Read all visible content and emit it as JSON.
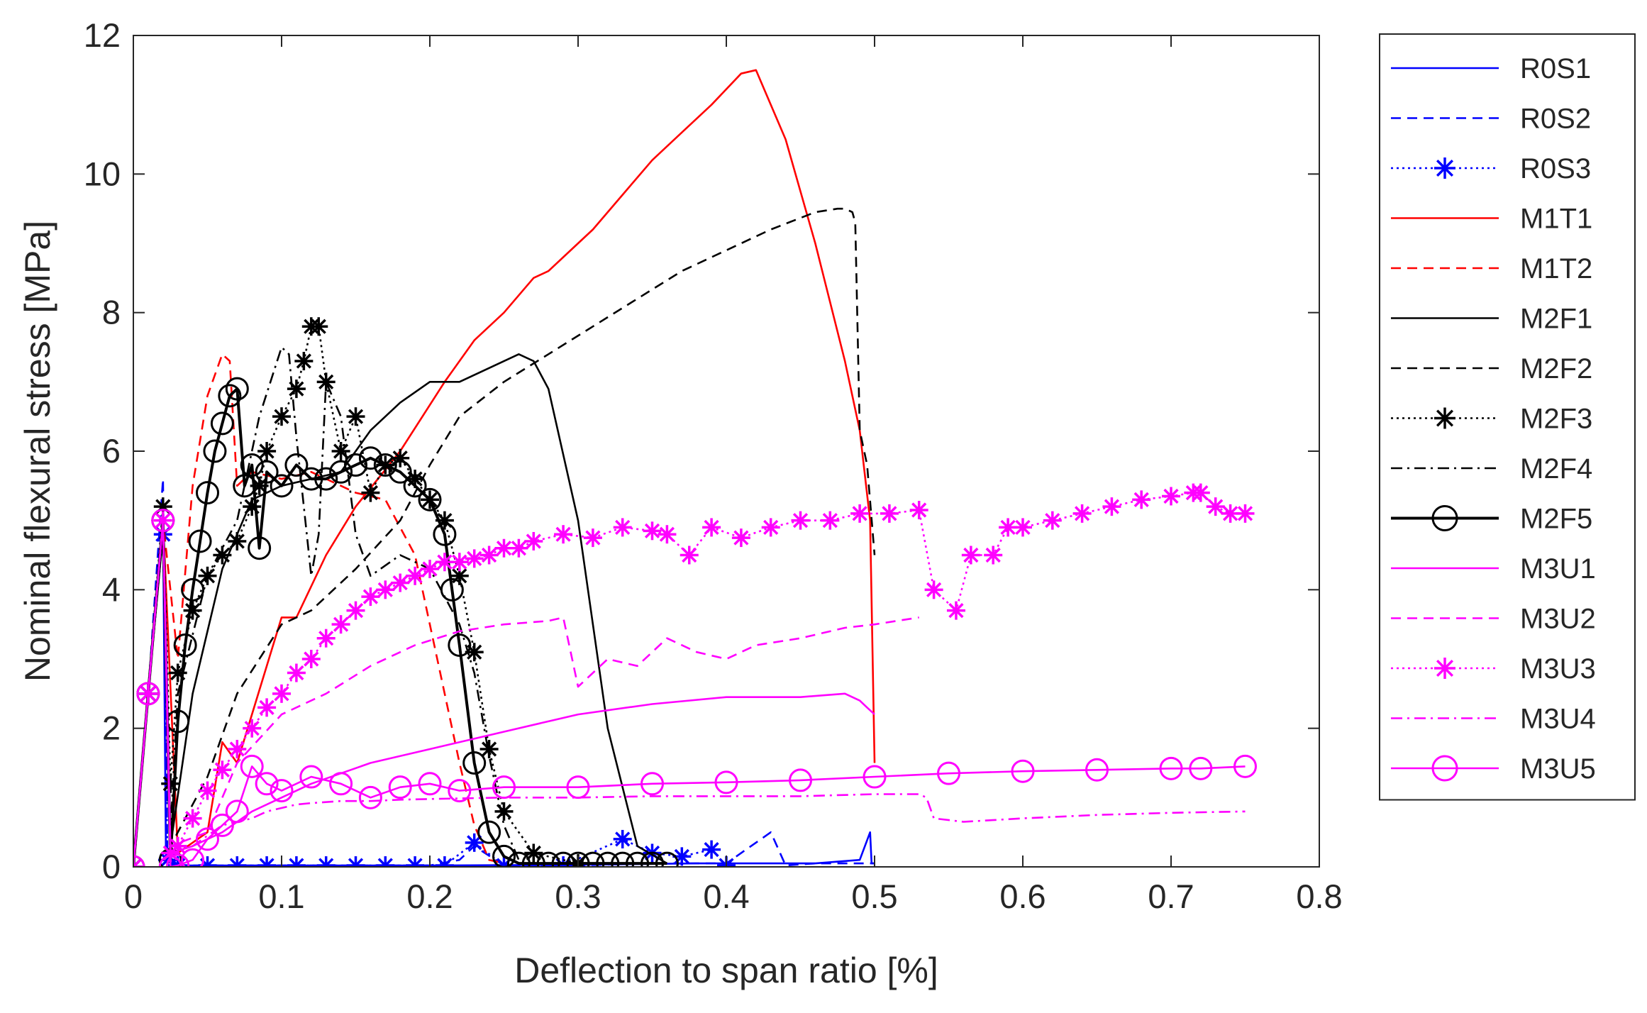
{
  "chart_data": {
    "type": "line",
    "xlabel": "Deflection to span ratio [%]",
    "ylabel": "Nominal flexural stress [MPa]",
    "xlim": [
      0,
      0.8
    ],
    "ylim": [
      0,
      12
    ],
    "xticks": [
      0,
      0.1,
      0.2,
      0.3,
      0.4,
      0.5,
      0.6,
      0.7,
      0.8
    ],
    "xtick_labels": [
      "0",
      "0.1",
      "0.2",
      "0.3",
      "0.4",
      "0.5",
      "0.6",
      "0.7",
      "0.8"
    ],
    "yticks": [
      0,
      2,
      4,
      6,
      8,
      10,
      12
    ],
    "ytick_labels": [
      "0",
      "2",
      "4",
      "6",
      "8",
      "10",
      "12"
    ],
    "grid": false,
    "legend_position": "outside-right",
    "series": [
      {
        "name": "R0S1",
        "color": "#0000ff",
        "dash": "solid",
        "marker": "none",
        "x": [
          0,
          0.01,
          0.02,
          0.022,
          0.03,
          0.1,
          0.2,
          0.3,
          0.38,
          0.42,
          0.46,
          0.49,
          0.497,
          0.498,
          0.5
        ],
        "y": [
          0,
          2.5,
          5.0,
          0.1,
          0.02,
          0.02,
          0.02,
          0.03,
          0.05,
          0.05,
          0.05,
          0.1,
          0.5,
          0.05,
          0.05
        ]
      },
      {
        "name": "R0S2",
        "color": "#0000ff",
        "dash": "dashed",
        "marker": "none",
        "x": [
          0,
          0.01,
          0.02,
          0.023,
          0.03,
          0.1,
          0.2,
          0.22,
          0.23,
          0.25,
          0.3,
          0.35,
          0.4,
          0.43,
          0.44,
          0.46,
          0.5
        ],
        "y": [
          0,
          2.5,
          5.6,
          0.1,
          0.02,
          0.02,
          0.02,
          0.1,
          0.3,
          0.02,
          0.02,
          0.05,
          0.05,
          0.5,
          0.02,
          0.05,
          0.05
        ]
      },
      {
        "name": "R0S3",
        "color": "#0000ff",
        "dash": "dotted",
        "marker": "star",
        "x": [
          0,
          0.01,
          0.02,
          0.023,
          0.03,
          0.05,
          0.07,
          0.09,
          0.11,
          0.13,
          0.15,
          0.17,
          0.19,
          0.21,
          0.23,
          0.25,
          0.29,
          0.33,
          0.35,
          0.37,
          0.39,
          0.4
        ],
        "y": [
          0,
          2.5,
          4.8,
          0.1,
          0.02,
          0.02,
          0.02,
          0.02,
          0.02,
          0.02,
          0.02,
          0.02,
          0.02,
          0.02,
          0.35,
          0.02,
          0.02,
          0.4,
          0.2,
          0.15,
          0.25,
          0.02
        ]
      },
      {
        "name": "M1T1",
        "color": "#ff0000",
        "dash": "solid",
        "marker": "none",
        "x": [
          0,
          0.01,
          0.02,
          0.03,
          0.05,
          0.06,
          0.07,
          0.1,
          0.11,
          0.13,
          0.15,
          0.18,
          0.21,
          0.23,
          0.25,
          0.27,
          0.28,
          0.3,
          0.31,
          0.33,
          0.35,
          0.37,
          0.39,
          0.41,
          0.42,
          0.44,
          0.46,
          0.48,
          0.49,
          0.497,
          0.5
        ],
        "y": [
          0,
          2.5,
          5.0,
          0.2,
          0.5,
          1.8,
          1.5,
          3.6,
          3.6,
          4.5,
          5.2,
          6.0,
          7.0,
          7.6,
          8.0,
          8.5,
          8.6,
          9.0,
          9.2,
          9.7,
          10.2,
          10.6,
          11.0,
          11.45,
          11.5,
          10.5,
          9.0,
          7.3,
          6.3,
          5.0,
          1.5
        ]
      },
      {
        "name": "M1T2",
        "color": "#ff0000",
        "dash": "dashed",
        "marker": "none",
        "x": [
          0,
          0.01,
          0.02,
          0.03,
          0.04,
          0.05,
          0.06,
          0.065,
          0.07,
          0.08,
          0.1,
          0.12,
          0.15,
          0.17,
          0.19,
          0.2,
          0.21,
          0.22,
          0.23,
          0.24,
          0.25
        ],
        "y": [
          0,
          2.5,
          5.0,
          3.0,
          5.5,
          6.8,
          7.4,
          7.3,
          5.5,
          5.7,
          5.6,
          5.7,
          5.4,
          5.3,
          4.5,
          3.5,
          2.5,
          1.5,
          0.6,
          0.1,
          0.05
        ]
      },
      {
        "name": "M2F1",
        "color": "#000000",
        "dash": "solid",
        "marker": "none",
        "x": [
          0,
          0.01,
          0.02,
          0.025,
          0.04,
          0.06,
          0.08,
          0.1,
          0.12,
          0.14,
          0.16,
          0.18,
          0.2,
          0.22,
          0.24,
          0.26,
          0.27,
          0.28,
          0.3,
          0.32,
          0.34,
          0.36
        ],
        "y": [
          0,
          2.5,
          4.8,
          0.3,
          2.5,
          4.3,
          5.3,
          5.5,
          5.6,
          5.7,
          6.3,
          6.7,
          7.0,
          7.0,
          7.2,
          7.4,
          7.3,
          6.9,
          5.0,
          2.0,
          0.3,
          0.05
        ]
      },
      {
        "name": "M2F2",
        "color": "#000000",
        "dash": "dashed",
        "marker": "none",
        "x": [
          0,
          0.01,
          0.02,
          0.025,
          0.05,
          0.07,
          0.1,
          0.12,
          0.15,
          0.18,
          0.2,
          0.22,
          0.25,
          0.28,
          0.31,
          0.34,
          0.37,
          0.4,
          0.43,
          0.46,
          0.475,
          0.48,
          0.485,
          0.487,
          0.49,
          0.495,
          0.5
        ],
        "y": [
          0,
          2.5,
          5.0,
          0.3,
          1.3,
          2.5,
          3.5,
          3.7,
          4.3,
          5.0,
          5.8,
          6.5,
          7.0,
          7.4,
          7.8,
          8.2,
          8.6,
          8.9,
          9.2,
          9.45,
          9.5,
          9.5,
          9.45,
          9.3,
          6.3,
          5.8,
          4.5
        ]
      },
      {
        "name": "M2F3",
        "color": "#000000",
        "dash": "dotted",
        "marker": "star",
        "x": [
          0,
          0.01,
          0.02,
          0.025,
          0.03,
          0.04,
          0.05,
          0.06,
          0.07,
          0.08,
          0.085,
          0.09,
          0.1,
          0.11,
          0.115,
          0.12,
          0.125,
          0.13,
          0.14,
          0.15,
          0.16,
          0.17,
          0.18,
          0.19,
          0.2,
          0.21,
          0.22,
          0.23,
          0.24,
          0.25,
          0.27,
          0.3
        ],
        "y": [
          0,
          2.5,
          5.2,
          1.2,
          2.8,
          3.7,
          4.2,
          4.5,
          4.7,
          5.2,
          5.5,
          6.0,
          6.5,
          6.9,
          7.3,
          7.8,
          7.8,
          7.0,
          6.0,
          6.5,
          5.4,
          5.8,
          5.9,
          5.6,
          5.3,
          5.0,
          4.2,
          3.1,
          1.7,
          0.8,
          0.2,
          0.05
        ]
      },
      {
        "name": "M2F4",
        "color": "#000000",
        "dash": "dashdot",
        "marker": "none",
        "x": [
          0,
          0.01,
          0.02,
          0.025,
          0.03,
          0.05,
          0.07,
          0.085,
          0.1,
          0.105,
          0.11,
          0.12,
          0.125,
          0.13,
          0.14,
          0.15,
          0.16,
          0.18,
          0.2,
          0.22,
          0.23,
          0.24,
          0.25,
          0.26
        ],
        "y": [
          0,
          2.5,
          5.0,
          0.5,
          2.5,
          4.2,
          5.0,
          6.5,
          7.5,
          7.4,
          6.2,
          4.2,
          4.8,
          7.0,
          6.5,
          4.8,
          4.2,
          4.5,
          4.3,
          3.5,
          2.8,
          1.6,
          0.6,
          0.1
        ]
      },
      {
        "name": "M2F5",
        "color": "#000000",
        "dash": "solid",
        "marker": "circle",
        "x": [
          0,
          0.01,
          0.02,
          0.025,
          0.03,
          0.035,
          0.04,
          0.045,
          0.05,
          0.055,
          0.06,
          0.065,
          0.07,
          0.075,
          0.08,
          0.085,
          0.09,
          0.1,
          0.11,
          0.12,
          0.13,
          0.14,
          0.15,
          0.16,
          0.17,
          0.18,
          0.19,
          0.2,
          0.21,
          0.215,
          0.22,
          0.23,
          0.24,
          0.25,
          0.26,
          0.27,
          0.28,
          0.29,
          0.3,
          0.31,
          0.32,
          0.33,
          0.34,
          0.35,
          0.36
        ],
        "y": [
          0,
          2.5,
          5.0,
          0.1,
          2.1,
          3.2,
          4.0,
          4.7,
          5.4,
          6.0,
          6.4,
          6.8,
          6.9,
          5.5,
          5.8,
          4.6,
          5.7,
          5.5,
          5.8,
          5.6,
          5.6,
          5.7,
          5.8,
          5.9,
          5.8,
          5.7,
          5.5,
          5.3,
          4.8,
          4.0,
          3.2,
          1.5,
          0.5,
          0.15,
          0.05,
          0.05,
          0.05,
          0.05,
          0.05,
          0.05,
          0.05,
          0.05,
          0.05,
          0.05,
          0.05
        ]
      },
      {
        "name": "M3U1",
        "color": "#ff00ff",
        "dash": "solid",
        "marker": "none",
        "x": [
          0,
          0.01,
          0.02,
          0.025,
          0.04,
          0.06,
          0.08,
          0.1,
          0.12,
          0.14,
          0.16,
          0.2,
          0.25,
          0.3,
          0.35,
          0.4,
          0.45,
          0.48,
          0.49,
          0.495,
          0.5
        ],
        "y": [
          0,
          2.5,
          5.0,
          0.2,
          0.3,
          0.5,
          0.8,
          1.0,
          1.2,
          1.35,
          1.5,
          1.7,
          1.95,
          2.2,
          2.35,
          2.45,
          2.45,
          2.5,
          2.4,
          2.3,
          2.2
        ]
      },
      {
        "name": "M3U2",
        "color": "#ff00ff",
        "dash": "dashed",
        "marker": "none",
        "x": [
          0,
          0.01,
          0.02,
          0.025,
          0.05,
          0.07,
          0.1,
          0.13,
          0.16,
          0.19,
          0.22,
          0.25,
          0.28,
          0.29,
          0.3,
          0.32,
          0.34,
          0.36,
          0.38,
          0.4,
          0.42,
          0.45,
          0.48,
          0.5,
          0.53
        ],
        "y": [
          0,
          2.5,
          5.0,
          0.3,
          0.5,
          1.5,
          2.2,
          2.5,
          2.9,
          3.2,
          3.4,
          3.5,
          3.55,
          3.6,
          2.6,
          3.0,
          2.9,
          3.3,
          3.1,
          3.0,
          3.2,
          3.3,
          3.45,
          3.5,
          3.6
        ]
      },
      {
        "name": "M3U3",
        "color": "#ff00ff",
        "dash": "dotted",
        "marker": "star",
        "x": [
          0,
          0.01,
          0.02,
          0.025,
          0.03,
          0.04,
          0.05,
          0.06,
          0.07,
          0.08,
          0.09,
          0.1,
          0.11,
          0.12,
          0.13,
          0.14,
          0.15,
          0.16,
          0.17,
          0.18,
          0.19,
          0.2,
          0.21,
          0.22,
          0.23,
          0.24,
          0.25,
          0.26,
          0.27,
          0.29,
          0.31,
          0.33,
          0.35,
          0.36,
          0.375,
          0.39,
          0.41,
          0.43,
          0.45,
          0.47,
          0.49,
          0.51,
          0.53,
          0.54,
          0.555,
          0.565,
          0.58,
          0.59,
          0.6,
          0.62,
          0.64,
          0.66,
          0.68,
          0.7,
          0.715,
          0.72,
          0.73,
          0.74,
          0.75
        ],
        "y": [
          0,
          2.5,
          5.0,
          0.2,
          0.3,
          0.7,
          1.1,
          1.4,
          1.7,
          2.0,
          2.3,
          2.5,
          2.8,
          3.0,
          3.3,
          3.5,
          3.7,
          3.9,
          4.0,
          4.1,
          4.2,
          4.3,
          4.4,
          4.4,
          4.45,
          4.5,
          4.6,
          4.6,
          4.7,
          4.8,
          4.75,
          4.9,
          4.85,
          4.8,
          4.5,
          4.9,
          4.75,
          4.9,
          5.0,
          5.0,
          5.1,
          5.1,
          5.15,
          4.0,
          3.7,
          4.5,
          4.5,
          4.9,
          4.9,
          5.0,
          5.1,
          5.2,
          5.3,
          5.35,
          5.4,
          5.4,
          5.2,
          5.1,
          5.1
        ]
      },
      {
        "name": "M3U4",
        "color": "#ff00ff",
        "dash": "dashdot",
        "marker": "none",
        "x": [
          0,
          0.01,
          0.02,
          0.025,
          0.04,
          0.06,
          0.08,
          0.09,
          0.1,
          0.11,
          0.12,
          0.14,
          0.16,
          0.18,
          0.2,
          0.25,
          0.3,
          0.35,
          0.4,
          0.45,
          0.5,
          0.53,
          0.535,
          0.54,
          0.56,
          0.6,
          0.65,
          0.7,
          0.75
        ],
        "y": [
          0,
          2.5,
          5.0,
          0.2,
          0.3,
          0.6,
          0.7,
          0.8,
          0.85,
          0.9,
          0.92,
          0.95,
          0.95,
          0.97,
          0.98,
          1.0,
          1.0,
          1.02,
          1.02,
          1.02,
          1.05,
          1.05,
          1.0,
          0.7,
          0.65,
          0.7,
          0.75,
          0.78,
          0.8
        ]
      },
      {
        "name": "M3U5",
        "color": "#ff00ff",
        "dash": "solid",
        "marker": "circle",
        "x": [
          0,
          0.01,
          0.02,
          0.025,
          0.03,
          0.04,
          0.05,
          0.06,
          0.07,
          0.08,
          0.09,
          0.1,
          0.12,
          0.14,
          0.16,
          0.18,
          0.2,
          0.22,
          0.25,
          0.3,
          0.35,
          0.4,
          0.45,
          0.5,
          0.55,
          0.6,
          0.65,
          0.7,
          0.72,
          0.75
        ],
        "y": [
          0,
          2.5,
          5.0,
          0.0,
          0.02,
          0.1,
          0.4,
          0.6,
          0.8,
          1.45,
          1.2,
          1.1,
          1.3,
          1.2,
          1.0,
          1.15,
          1.2,
          1.1,
          1.15,
          1.15,
          1.2,
          1.22,
          1.25,
          1.3,
          1.35,
          1.38,
          1.4,
          1.42,
          1.42,
          1.45
        ]
      }
    ]
  }
}
